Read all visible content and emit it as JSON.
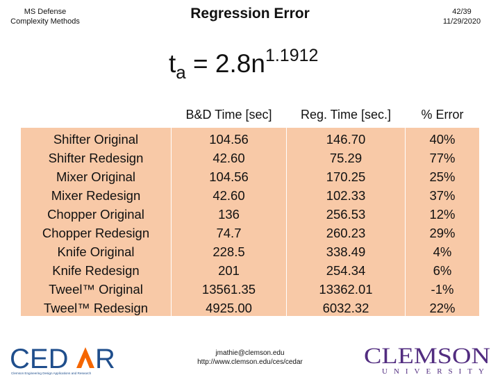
{
  "header": {
    "left_line1": "MS Defense",
    "left_line2": "Complexity Methods",
    "title": "Regression Error",
    "page": "42/39",
    "date": "11/29/2020"
  },
  "formula": {
    "base": "t",
    "subscript": "a",
    "middle": " = 2.8n",
    "superscript": "1.1912"
  },
  "table": {
    "columns": [
      "B&D Time [sec]",
      "Reg. Time [sec.]",
      "% Error"
    ],
    "rows": [
      {
        "name": "Shifter Original",
        "bd": "104.56",
        "reg": "146.70",
        "err": "40%"
      },
      {
        "name": "Shifter Redesign",
        "bd": "42.60",
        "reg": "75.29",
        "err": "77%"
      },
      {
        "name": "Mixer Original",
        "bd": "104.56",
        "reg": "170.25",
        "err": "25%"
      },
      {
        "name": "Mixer Redesign",
        "bd": "42.60",
        "reg": "102.33",
        "err": "37%"
      },
      {
        "name": "Chopper Original",
        "bd": "136",
        "reg": "256.53",
        "err": "12%"
      },
      {
        "name": "Chopper Redesign",
        "bd": "74.7",
        "reg": "260.23",
        "err": "29%"
      },
      {
        "name": "Knife Original",
        "bd": "228.5",
        "reg": "338.49",
        "err": "4%"
      },
      {
        "name": "Knife Redesign",
        "bd": "201",
        "reg": "254.34",
        "err": "6%"
      },
      {
        "name": "Tweel™ Original",
        "bd": "13561.35",
        "reg": "13362.01",
        "err": "-1%"
      },
      {
        "name": "Tweel™ Redesign",
        "bd": "4925.00",
        "reg": "6032.32",
        "err": "22%"
      }
    ]
  },
  "footer": {
    "email": "jmathie@clemson.edu",
    "url": "http://www.clemson.edu/ces/cedar",
    "cedar_logo_text": "CEDAR",
    "cedar_logo_tagline": "Clemson Engineering Design Applications and Research",
    "clemson_logo_text": "CLEMSON",
    "clemson_logo_sub": "UNIVERSITY",
    "colors": {
      "cedar_blue": "#1f4e8c",
      "clemson_orange": "#f56600",
      "clemson_purple": "#522d80",
      "cell_fill": "#f8c9a7"
    }
  }
}
